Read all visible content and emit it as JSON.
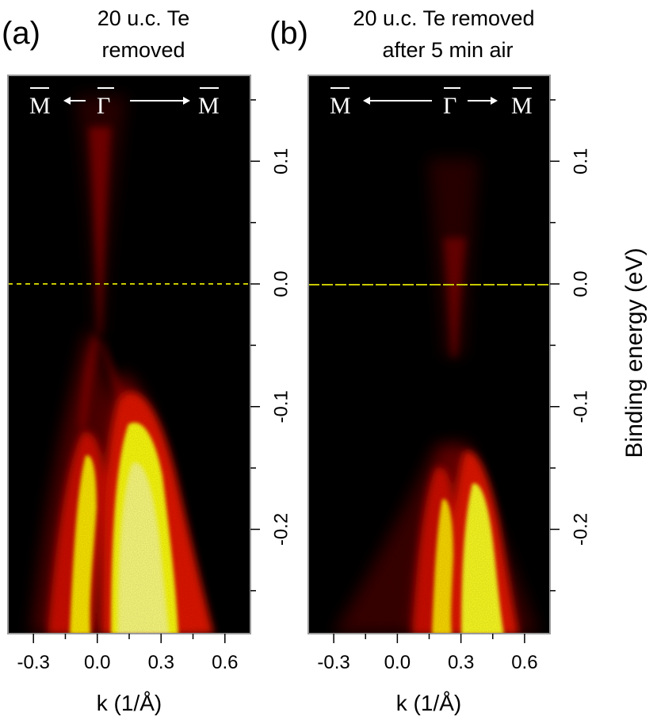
{
  "panels": [
    {
      "letter": "(a)",
      "title_lines": [
        "20 u.c. Te",
        "removed"
      ],
      "kpath": {
        "left": "M",
        "center": "Γ",
        "right": "M"
      }
    },
    {
      "letter": "(b)",
      "title_lines": [
        "20 u.c. Te removed",
        "after 5 min air"
      ],
      "kpath": {
        "left": "M",
        "center": "Γ",
        "right": "M"
      }
    }
  ],
  "colors": {
    "background": "#000000",
    "intensity_low": "#5a0000",
    "intensity_mid": "#ff2000",
    "intensity_high": "#ffff00",
    "fermi_line": "#c8c800"
  },
  "chart_data": [
    {
      "type": "heatmap",
      "panel": "(a)",
      "title": "20 u.c. Te removed",
      "xlabel": "k (1/Å)",
      "ylabel": "",
      "xlim": [
        -0.42,
        0.72
      ],
      "ylim": [
        -0.285,
        0.17
      ],
      "xticks": [
        -0.3,
        0.0,
        0.3,
        0.6
      ],
      "xtick_labels": [
        "-0.3",
        "0.0",
        "0.3",
        "0.6"
      ],
      "yticks": [
        -0.2,
        -0.1,
        0.0,
        0.1
      ],
      "ytick_labels": [
        "-0.2",
        "-0.1",
        "0.0",
        "0.1"
      ],
      "reference_line_y": 0.0,
      "features": [
        {
          "name": "left valence band",
          "apex_k": -0.06,
          "apex_E": -0.13
        },
        {
          "name": "right valence band",
          "apex_k": 0.16,
          "apex_E": -0.095
        },
        {
          "name": "Dirac-like crossing",
          "k": 0.03,
          "E": -0.07
        }
      ]
    },
    {
      "type": "heatmap",
      "panel": "(b)",
      "title": "20 u.c. Te removed after 5 min air",
      "xlabel": "k (1/Å)",
      "ylabel": "Binding energy (eV)",
      "xlim": [
        -0.42,
        0.72
      ],
      "ylim": [
        -0.285,
        0.17
      ],
      "xticks": [
        -0.3,
        0.0,
        0.3,
        0.6
      ],
      "xtick_labels": [
        "-0.3",
        "0.0",
        "0.3",
        "0.6"
      ],
      "yticks": [
        -0.2,
        -0.1,
        0.0,
        0.1
      ],
      "ytick_labels": [
        "-0.2",
        "-0.1",
        "0.0",
        "0.1"
      ],
      "reference_line_y": 0.0,
      "features": [
        {
          "name": "left valence band",
          "apex_k": 0.2,
          "apex_E": -0.15
        },
        {
          "name": "right valence band",
          "apex_k": 0.35,
          "apex_E": -0.125
        },
        {
          "name": "Dirac-like crossing",
          "k": 0.27,
          "E": -0.09
        }
      ]
    }
  ]
}
